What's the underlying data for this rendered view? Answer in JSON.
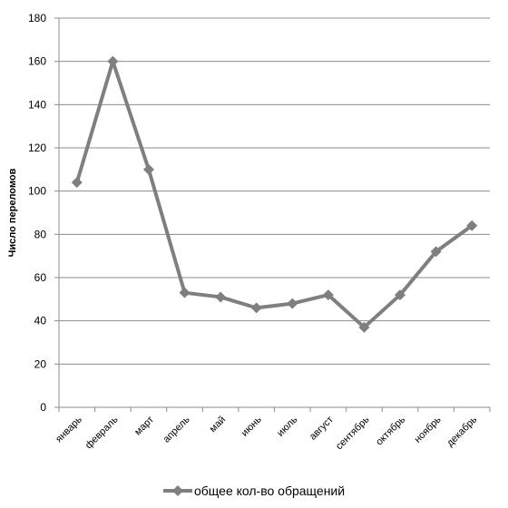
{
  "chart_data": {
    "type": "line",
    "title": "",
    "xlabel": "",
    "ylabel": "Число переломов",
    "ylim": [
      0,
      180
    ],
    "yticks": [
      0,
      20,
      40,
      60,
      80,
      100,
      120,
      140,
      160,
      180
    ],
    "categories": [
      "январь",
      "февраль",
      "март",
      "апрель",
      "май",
      "июнь",
      "июль",
      "август",
      "сентябрь",
      "октябрь",
      "ноябрь",
      "декабрь"
    ],
    "series": [
      {
        "name": "общее кол-во обращений",
        "values": [
          104,
          160,
          110,
          53,
          51,
          46,
          48,
          52,
          37,
          52,
          72,
          84
        ],
        "color": "#7f7f7f",
        "marker": "diamond"
      }
    ],
    "grid": true,
    "legend_position": "bottom"
  }
}
